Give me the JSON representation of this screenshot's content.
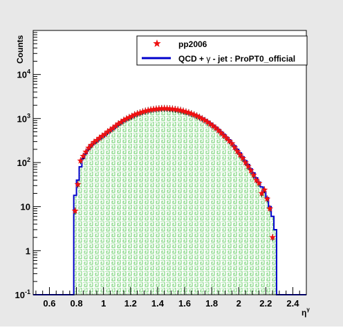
{
  "chart_data": {
    "type": "histogram",
    "xlabel": "η",
    "xlabel_sup": "γ",
    "ylabel": "Counts",
    "y_scale": "log",
    "xlim": [
      0.48,
      2.5
    ],
    "ylim": [
      0.1,
      100000
    ],
    "x_ticks": [
      0.6,
      0.8,
      1,
      1.2,
      1.4,
      1.6,
      1.8,
      2,
      2.2,
      2.4
    ],
    "x_tick_labels": [
      "0.6",
      "0.8",
      "1",
      "1.2",
      "1.4",
      "1.6",
      "1.8",
      "2",
      "2.2",
      "2.4"
    ],
    "y_ticks": [
      0.1,
      1,
      10,
      100,
      1000,
      10000
    ],
    "y_tick_labels": [
      {
        "base": "10",
        "exp": "-1"
      },
      {
        "base": "1",
        "exp": ""
      },
      {
        "base": "10",
        "exp": ""
      },
      {
        "base": "10",
        "exp": "2"
      },
      {
        "base": "10",
        "exp": "3"
      },
      {
        "base": "10",
        "exp": "4"
      }
    ],
    "legend": {
      "position": "top-right",
      "entries": [
        {
          "label": "pp2006",
          "marker": "red-star"
        },
        {
          "label_before": "QCD + ",
          "label_symbol": "γ",
          "label_after": " - jet : ProPT0_official",
          "marker": "blue-line"
        }
      ]
    },
    "colors": {
      "frame_bg": "#e8e8e8",
      "plot_bg": "#ffffff",
      "mc_line": "#0000cc",
      "mc_fill": "#66cc66",
      "data_marker": "#ee1111"
    },
    "series": [
      {
        "name": "QCD + γ - jet : ProPT0_official",
        "kind": "histogram",
        "bin_width": 0.02,
        "bins": [
          [
            0.78,
            18
          ],
          [
            0.8,
            40
          ],
          [
            0.82,
            80
          ],
          [
            0.84,
            125
          ],
          [
            0.86,
            160
          ],
          [
            0.88,
            200
          ],
          [
            0.9,
            240
          ],
          [
            0.92,
            270
          ],
          [
            0.94,
            300
          ],
          [
            0.96,
            340
          ],
          [
            0.98,
            380
          ],
          [
            1.0,
            420
          ],
          [
            1.02,
            470
          ],
          [
            1.04,
            520
          ],
          [
            1.06,
            580
          ],
          [
            1.08,
            650
          ],
          [
            1.1,
            720
          ],
          [
            1.12,
            800
          ],
          [
            1.14,
            880
          ],
          [
            1.16,
            950
          ],
          [
            1.18,
            1020
          ],
          [
            1.2,
            1100
          ],
          [
            1.22,
            1180
          ],
          [
            1.24,
            1250
          ],
          [
            1.26,
            1320
          ],
          [
            1.28,
            1390
          ],
          [
            1.3,
            1450
          ],
          [
            1.32,
            1500
          ],
          [
            1.34,
            1550
          ],
          [
            1.36,
            1600
          ],
          [
            1.38,
            1640
          ],
          [
            1.4,
            1660
          ],
          [
            1.42,
            1680
          ],
          [
            1.44,
            1690
          ],
          [
            1.46,
            1690
          ],
          [
            1.48,
            1680
          ],
          [
            1.5,
            1660
          ],
          [
            1.52,
            1630
          ],
          [
            1.54,
            1600
          ],
          [
            1.56,
            1560
          ],
          [
            1.58,
            1510
          ],
          [
            1.6,
            1450
          ],
          [
            1.62,
            1390
          ],
          [
            1.64,
            1330
          ],
          [
            1.66,
            1260
          ],
          [
            1.68,
            1190
          ],
          [
            1.7,
            1110
          ],
          [
            1.72,
            1030
          ],
          [
            1.74,
            950
          ],
          [
            1.76,
            870
          ],
          [
            1.78,
            790
          ],
          [
            1.8,
            710
          ],
          [
            1.82,
            640
          ],
          [
            1.84,
            570
          ],
          [
            1.86,
            500
          ],
          [
            1.88,
            440
          ],
          [
            1.9,
            380
          ],
          [
            1.92,
            330
          ],
          [
            1.94,
            280
          ],
          [
            1.96,
            240
          ],
          [
            1.98,
            200
          ],
          [
            2.0,
            165
          ],
          [
            2.02,
            135
          ],
          [
            2.04,
            110
          ],
          [
            2.06,
            90
          ],
          [
            2.08,
            72
          ],
          [
            2.1,
            58
          ],
          [
            2.12,
            45
          ],
          [
            2.14,
            36
          ],
          [
            2.16,
            28
          ],
          [
            2.18,
            22
          ],
          [
            2.2,
            16
          ],
          [
            2.22,
            10
          ],
          [
            2.24,
            6
          ],
          [
            2.26,
            3
          ]
        ]
      },
      {
        "name": "pp2006",
        "kind": "points",
        "points": [
          [
            0.79,
            8
          ],
          [
            0.81,
            32
          ],
          [
            0.83,
            110
          ],
          [
            0.85,
            140
          ],
          [
            0.87,
            175
          ],
          [
            0.89,
            215
          ],
          [
            0.91,
            250
          ],
          [
            0.93,
            290
          ],
          [
            0.95,
            320
          ],
          [
            0.97,
            360
          ],
          [
            0.99,
            400
          ],
          [
            1.01,
            440
          ],
          [
            1.03,
            500
          ],
          [
            1.05,
            550
          ],
          [
            1.07,
            610
          ],
          [
            1.09,
            680
          ],
          [
            1.11,
            760
          ],
          [
            1.13,
            830
          ],
          [
            1.15,
            920
          ],
          [
            1.17,
            990
          ],
          [
            1.19,
            1060
          ],
          [
            1.21,
            1130
          ],
          [
            1.23,
            1220
          ],
          [
            1.25,
            1290
          ],
          [
            1.27,
            1350
          ],
          [
            1.29,
            1420
          ],
          [
            1.31,
            1480
          ],
          [
            1.33,
            1530
          ],
          [
            1.35,
            1580
          ],
          [
            1.37,
            1620
          ],
          [
            1.39,
            1650
          ],
          [
            1.41,
            1670
          ],
          [
            1.43,
            1690
          ],
          [
            1.45,
            1700
          ],
          [
            1.47,
            1690
          ],
          [
            1.49,
            1670
          ],
          [
            1.51,
            1650
          ],
          [
            1.53,
            1620
          ],
          [
            1.55,
            1580
          ],
          [
            1.57,
            1540
          ],
          [
            1.59,
            1480
          ],
          [
            1.61,
            1420
          ],
          [
            1.63,
            1360
          ],
          [
            1.65,
            1290
          ],
          [
            1.67,
            1220
          ],
          [
            1.69,
            1150
          ],
          [
            1.71,
            1070
          ],
          [
            1.73,
            990
          ],
          [
            1.75,
            910
          ],
          [
            1.77,
            830
          ],
          [
            1.79,
            750
          ],
          [
            1.81,
            680
          ],
          [
            1.83,
            610
          ],
          [
            1.85,
            540
          ],
          [
            1.87,
            470
          ],
          [
            1.89,
            410
          ],
          [
            1.91,
            360
          ],
          [
            1.93,
            310
          ],
          [
            1.95,
            270
          ],
          [
            1.97,
            220
          ],
          [
            1.99,
            180
          ],
          [
            2.01,
            150
          ],
          [
            2.03,
            125
          ],
          [
            2.05,
            100
          ],
          [
            2.07,
            82
          ],
          [
            2.09,
            66
          ],
          [
            2.11,
            52
          ],
          [
            2.13,
            40
          ],
          [
            2.15,
            34
          ],
          [
            2.17,
            20
          ],
          [
            2.19,
            24
          ],
          [
            2.21,
            15
          ],
          [
            2.23,
            9
          ],
          [
            2.25,
            2
          ]
        ]
      }
    ]
  }
}
